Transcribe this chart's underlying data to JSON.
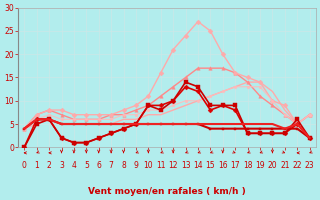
{
  "background_color": "#b2eded",
  "grid_color": "#c8e8e8",
  "xlabel": "Vent moyen/en rafales ( km/h )",
  "tick_color": "#cc0000",
  "xlim_min": -0.5,
  "xlim_max": 23.5,
  "ylim_min": 0,
  "ylim_max": 30,
  "yticks": [
    0,
    5,
    10,
    15,
    20,
    25,
    30
  ],
  "xticks": [
    0,
    1,
    2,
    3,
    4,
    5,
    6,
    7,
    8,
    9,
    10,
    11,
    12,
    13,
    14,
    15,
    16,
    17,
    18,
    19,
    20,
    21,
    22,
    23
  ],
  "series": [
    {
      "label": "line1_smooth",
      "x": [
        0,
        1,
        2,
        3,
        4,
        5,
        6,
        7,
        8,
        9,
        10,
        11,
        12,
        13,
        14,
        15,
        16,
        17,
        18,
        19,
        20,
        21,
        22,
        23
      ],
      "y": [
        4,
        5,
        6,
        5,
        5,
        5,
        5,
        5,
        6,
        6,
        7,
        7,
        8,
        9,
        10,
        11,
        12,
        13,
        14,
        14,
        12,
        8,
        5,
        7
      ],
      "color": "#ffaaaa",
      "marker": null,
      "linewidth": 1.0,
      "markersize": 0,
      "alpha": 1.0
    },
    {
      "label": "line2_triangle",
      "x": [
        0,
        1,
        2,
        3,
        4,
        5,
        6,
        7,
        8,
        9,
        10,
        11,
        12,
        13,
        14,
        15,
        16,
        17,
        18,
        19,
        20,
        21,
        22,
        23
      ],
      "y": [
        4,
        7,
        8,
        7,
        6,
        6,
        6,
        7,
        7,
        8,
        9,
        11,
        13,
        15,
        17,
        17,
        17,
        16,
        14,
        11,
        9,
        7,
        5,
        7
      ],
      "color": "#ff8888",
      "marker": "^",
      "linewidth": 1.0,
      "markersize": 2.5,
      "alpha": 1.0
    },
    {
      "label": "line3_peak",
      "x": [
        0,
        1,
        2,
        3,
        4,
        5,
        6,
        7,
        8,
        9,
        10,
        11,
        12,
        13,
        14,
        15,
        16,
        17,
        18,
        19,
        20,
        21,
        22,
        23
      ],
      "y": [
        4,
        7,
        8,
        8,
        7,
        7,
        7,
        7,
        8,
        9,
        11,
        16,
        21,
        24,
        27,
        25,
        20,
        16,
        15,
        14,
        10,
        9,
        5,
        7
      ],
      "color": "#ffaaaa",
      "marker": "D",
      "linewidth": 1.0,
      "markersize": 2.5,
      "alpha": 1.0
    },
    {
      "label": "line4_flat_light",
      "x": [
        0,
        1,
        2,
        3,
        4,
        5,
        6,
        7,
        8,
        9,
        10,
        11,
        12,
        13,
        14,
        15,
        16,
        17,
        18,
        19,
        20,
        21,
        22,
        23
      ],
      "y": [
        4,
        6,
        7,
        6,
        6,
        6,
        6,
        6,
        7,
        7,
        8,
        8,
        9,
        10,
        10,
        11,
        12,
        13,
        13,
        13,
        10,
        7,
        5,
        7
      ],
      "color": "#ffbbbb",
      "marker": "o",
      "linewidth": 0.8,
      "markersize": 2,
      "alpha": 0.9
    },
    {
      "label": "line5_red_zigzag",
      "x": [
        0,
        1,
        2,
        3,
        4,
        5,
        6,
        7,
        8,
        9,
        10,
        11,
        12,
        13,
        14,
        15,
        16,
        17,
        18,
        19,
        20,
        21,
        22,
        23
      ],
      "y": [
        0,
        6,
        6,
        2,
        1,
        1,
        2,
        3,
        4,
        5,
        9,
        9,
        10,
        13,
        12,
        8,
        9,
        8,
        3,
        3,
        3,
        3,
        5,
        2
      ],
      "color": "#dd0000",
      "marker": "D",
      "linewidth": 1.2,
      "markersize": 2.5,
      "alpha": 1.0
    },
    {
      "label": "line6_red_zigzag2",
      "x": [
        0,
        1,
        2,
        3,
        4,
        5,
        6,
        7,
        8,
        9,
        10,
        11,
        12,
        13,
        14,
        15,
        16,
        17,
        18,
        19,
        20,
        21,
        22,
        23
      ],
      "y": [
        0,
        5,
        6,
        2,
        1,
        1,
        2,
        3,
        4,
        5,
        9,
        8,
        10,
        14,
        13,
        9,
        9,
        9,
        3,
        3,
        3,
        3,
        6,
        2
      ],
      "color": "#cc0000",
      "marker": "s",
      "linewidth": 1.2,
      "markersize": 2.5,
      "alpha": 1.0
    },
    {
      "label": "line7_flat_red",
      "x": [
        0,
        1,
        2,
        3,
        4,
        5,
        6,
        7,
        8,
        9,
        10,
        11,
        12,
        13,
        14,
        15,
        16,
        17,
        18,
        19,
        20,
        21,
        22,
        23
      ],
      "y": [
        4,
        6,
        6,
        5,
        5,
        5,
        5,
        5,
        5,
        5,
        5,
        5,
        5,
        5,
        5,
        4,
        4,
        4,
        4,
        4,
        4,
        4,
        4,
        2
      ],
      "color": "#cc0000",
      "marker": "s",
      "linewidth": 1.5,
      "markersize": 2,
      "alpha": 1.0
    },
    {
      "label": "line8_flat_red2",
      "x": [
        0,
        1,
        2,
        3,
        4,
        5,
        6,
        7,
        8,
        9,
        10,
        11,
        12,
        13,
        14,
        15,
        16,
        17,
        18,
        19,
        20,
        21,
        22,
        23
      ],
      "y": [
        4,
        6,
        6,
        5,
        5,
        5,
        5,
        5,
        5,
        5,
        5,
        5,
        5,
        5,
        5,
        5,
        5,
        5,
        5,
        5,
        5,
        4,
        5,
        2
      ],
      "color": "#ee2222",
      "marker": null,
      "linewidth": 1.5,
      "markersize": 0,
      "alpha": 1.0
    }
  ],
  "tick_fontsize": 5.5,
  "label_fontsize": 6.5,
  "arrow_color": "#cc0000",
  "arrow_directions": [
    180,
    225,
    180,
    270,
    270,
    270,
    270,
    270,
    270,
    225,
    270,
    225,
    270,
    225,
    225,
    225,
    270,
    315,
    225,
    225,
    270,
    315,
    180,
    225
  ]
}
